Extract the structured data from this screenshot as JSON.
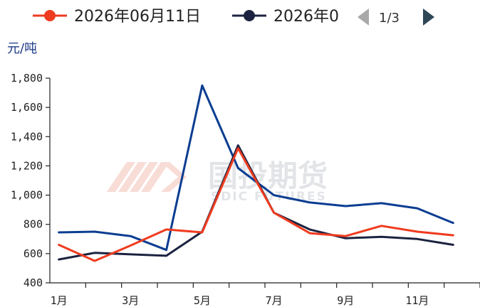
{
  "legend": {
    "items": [
      {
        "label": "2026年06月11日",
        "color": "#ef3b1f"
      },
      {
        "label": "2026年0",
        "color": "#1c2340"
      }
    ],
    "pager": {
      "text": "1/3",
      "prev_icon": "triangle-left-icon",
      "next_icon": "triangle-right-icon"
    }
  },
  "watermark": {
    "cn": "国投期货",
    "en": "SDIC FUTURES"
  },
  "chart_data": {
    "type": "line",
    "unit_label": "元/吨",
    "x_tick_labels": [
      "1月",
      "3月",
      "5月",
      "7月",
      "9月",
      "11月"
    ],
    "ylim": [
      400,
      1800
    ],
    "y_ticks": [
      400,
      600,
      800,
      1000,
      1200,
      1400,
      1600,
      1800
    ],
    "y_tick_labels": [
      "400",
      "600",
      "800",
      "1,000",
      "1,200",
      "1,400",
      "1,600",
      "1,800"
    ],
    "x_range": [
      0.75,
      12.75
    ],
    "grid": false,
    "legend_position": "top",
    "series": [
      {
        "name": "2026年06月11日",
        "color": "#ef3b1f",
        "x": [
          1,
          2,
          3,
          4,
          5,
          6,
          7,
          8,
          9,
          10,
          11,
          12
        ],
        "values": [
          660,
          550,
          655,
          765,
          745,
          1320,
          880,
          740,
          720,
          790,
          750,
          725
        ]
      },
      {
        "name": "2026年0",
        "color": "#1c2340",
        "x": [
          1,
          2,
          3,
          4,
          5,
          6,
          7,
          8,
          9,
          10,
          11,
          12
        ],
        "values": [
          560,
          605,
          595,
          585,
          750,
          1340,
          880,
          765,
          705,
          715,
          700,
          660
        ]
      },
      {
        "name": "",
        "color": "#0b3d91",
        "x": [
          1,
          2,
          3,
          4,
          5,
          6,
          7,
          8,
          9,
          10,
          11,
          12
        ],
        "values": [
          745,
          750,
          720,
          625,
          1750,
          1185,
          1000,
          950,
          925,
          945,
          910,
          810
        ]
      }
    ]
  }
}
